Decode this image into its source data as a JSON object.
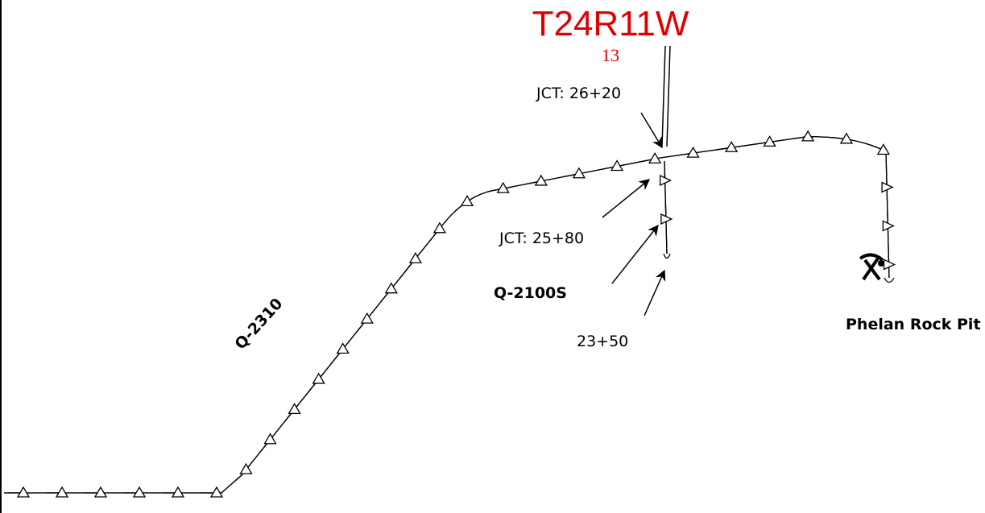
{
  "township": "T24R11W",
  "section": "13",
  "labels": {
    "jct_upper": "JCT: 26+20",
    "jct_lower": "JCT: 25+80",
    "spur_road": "Q-2100S",
    "spur_end": "23+50",
    "main_road": "Q-2310",
    "pit": "Phelan Rock Pit"
  }
}
